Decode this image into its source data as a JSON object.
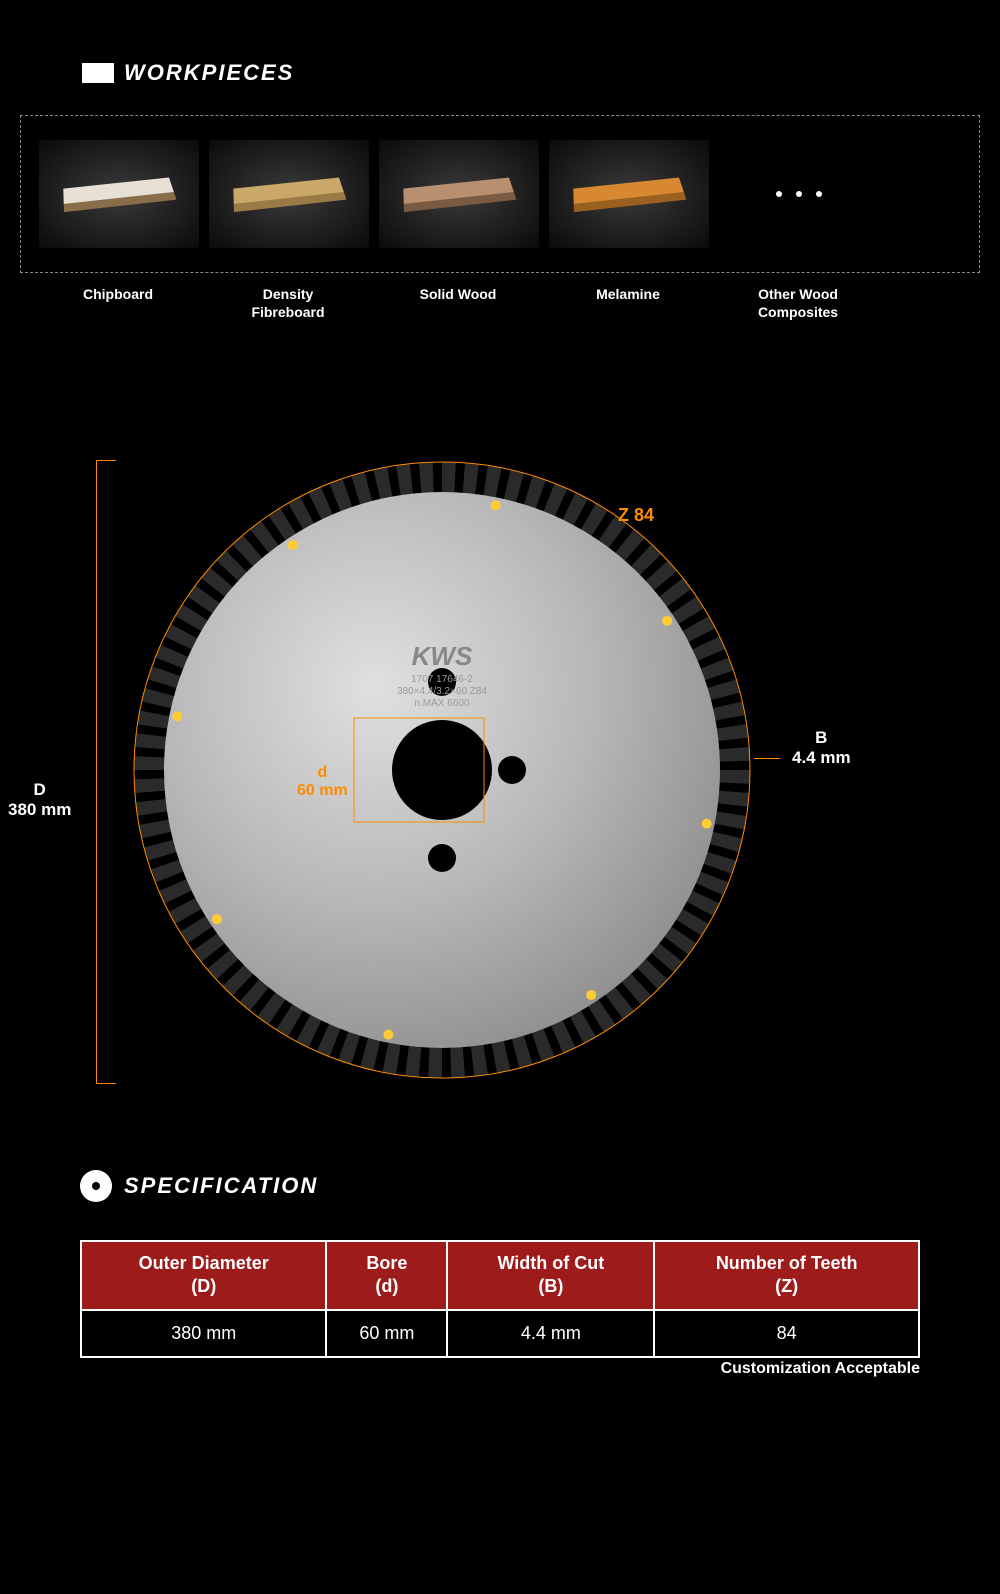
{
  "workpieces": {
    "title": "WORKPIECES",
    "items": [
      {
        "label": "Chipboard",
        "topColor": "#e8e0d5",
        "sideColor": "#8a6d4a"
      },
      {
        "label": "Density\nFibreboard",
        "topColor": "#c9a86a",
        "sideColor": "#9a7a45"
      },
      {
        "label": "Solid Wood",
        "topColor": "#b89070",
        "sideColor": "#7a5a40"
      },
      {
        "label": "Melamine",
        "topColor": "#d88830",
        "sideColor": "#9a6020"
      }
    ],
    "moreLabel": "Other Wood\nComposites"
  },
  "blade": {
    "labels": {
      "D": {
        "prefix": "D",
        "value": "380 mm"
      },
      "Z": "Z 84",
      "B": {
        "prefix": "B",
        "value": "4.4 mm"
      },
      "d": {
        "prefix": "d",
        "value": "60 mm"
      }
    },
    "brand": "KWS",
    "brandText1": "1707 17646-2",
    "brandText2": "380×4.4/3.2×60 Z84",
    "brandText3": "n.MAX 6600",
    "colors": {
      "body": "#b8b8b8",
      "bodyLight": "#d0d0d0",
      "teeth": "#2a2a2a",
      "accent": "#ff8c00",
      "dot": "#ffcc33"
    },
    "teethCount": 84,
    "markerCount": 8
  },
  "spec": {
    "title": "SPECIFICATION",
    "headers": [
      "Outer Diameter\n(D)",
      "Bore\n(d)",
      "Width of Cut\n(B)",
      "Number of Teeth\n(Z)"
    ],
    "row": [
      "380 mm",
      "60 mm",
      "4.4 mm",
      "84"
    ],
    "headerBg": "#9e1b1b",
    "note": "Customization Acceptable"
  }
}
